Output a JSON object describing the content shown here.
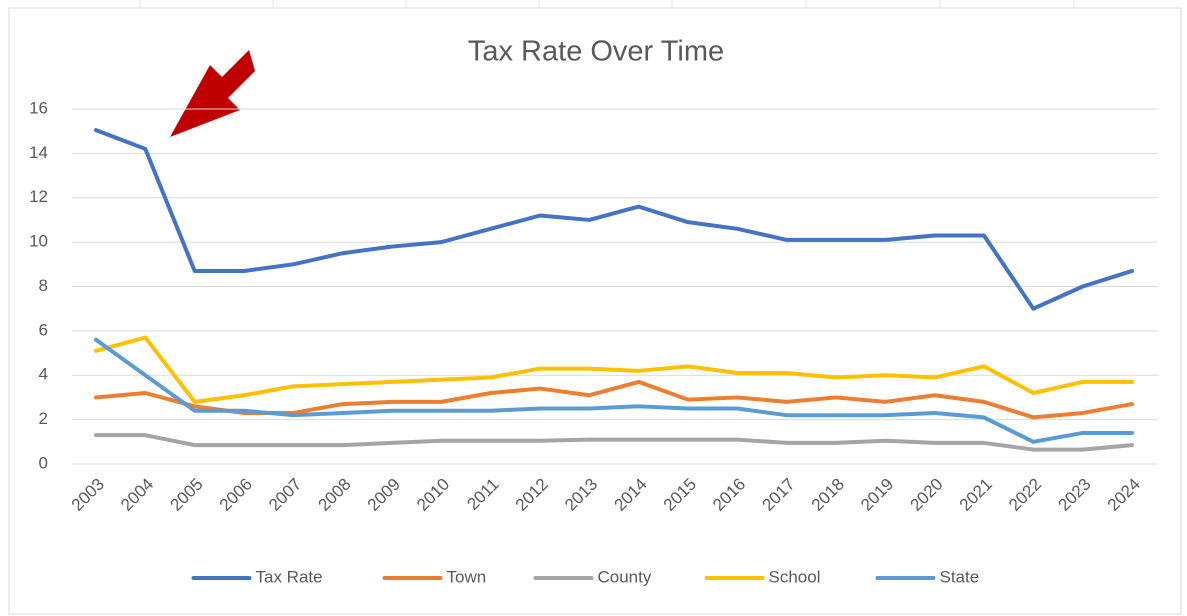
{
  "chart_data": {
    "type": "line",
    "title": "Tax Rate Over Time",
    "categories": [
      "2003",
      "2004",
      "2005",
      "2006",
      "2007",
      "2008",
      "2009",
      "2010",
      "2011",
      "2012",
      "2013",
      "2014",
      "2015",
      "2016",
      "2017",
      "2018",
      "2019",
      "2020",
      "2021",
      "2022",
      "2023",
      "2024"
    ],
    "series": [
      {
        "name": "Tax Rate",
        "color": "#4472c4",
        "values": [
          15.05,
          14.2,
          8.7,
          8.7,
          9.0,
          9.5,
          9.8,
          10.0,
          10.6,
          11.2,
          11.0,
          11.6,
          10.9,
          10.6,
          10.1,
          10.1,
          10.1,
          10.3,
          10.3,
          7.0,
          8.0,
          8.7
        ]
      },
      {
        "name": "Town",
        "color": "#ed7d31",
        "values": [
          3.0,
          3.2,
          2.6,
          2.3,
          2.3,
          2.7,
          2.8,
          2.8,
          3.2,
          3.4,
          3.1,
          3.7,
          2.9,
          3.0,
          2.8,
          3.0,
          2.8,
          3.1,
          2.8,
          2.1,
          2.3,
          2.7
        ]
      },
      {
        "name": "County",
        "color": "#a5a5a5",
        "values": [
          1.3,
          1.3,
          0.85,
          0.85,
          0.85,
          0.85,
          0.95,
          1.05,
          1.05,
          1.05,
          1.1,
          1.1,
          1.1,
          1.1,
          0.95,
          0.95,
          1.05,
          0.95,
          0.95,
          0.65,
          0.65,
          0.85
        ]
      },
      {
        "name": "School",
        "color": "#ffc000",
        "values": [
          5.1,
          5.7,
          2.8,
          3.1,
          3.5,
          3.6,
          3.7,
          3.8,
          3.9,
          4.3,
          4.3,
          4.2,
          4.4,
          4.1,
          4.1,
          3.9,
          4.0,
          3.9,
          4.4,
          3.2,
          3.7,
          3.7
        ]
      },
      {
        "name": "State",
        "color": "#5b9bd5",
        "values": [
          5.6,
          4.0,
          2.4,
          2.4,
          2.2,
          2.3,
          2.4,
          2.4,
          2.4,
          2.5,
          2.5,
          2.6,
          2.5,
          2.5,
          2.2,
          2.2,
          2.2,
          2.3,
          2.1,
          1.0,
          1.4,
          1.4
        ]
      }
    ],
    "ylim": [
      0,
      16
    ],
    "yticks": [
      0,
      2,
      4,
      6,
      8,
      10,
      12,
      14,
      16
    ],
    "grid": true,
    "legend": "bottom"
  }
}
